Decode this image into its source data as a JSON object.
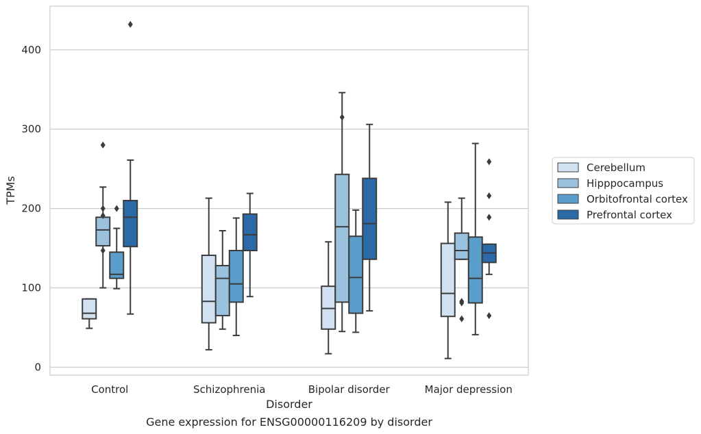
{
  "chart_data": {
    "type": "box",
    "title": "",
    "caption": "Gene expression for ENSG00000116209 by disorder",
    "xlabel": "Disorder",
    "ylabel": "TPMs",
    "ylim": [
      -10,
      455
    ],
    "yticks": [
      0,
      100,
      200,
      300,
      400
    ],
    "grid": "y",
    "legend_position": "right",
    "categories": [
      "Control",
      "Schizophrenia",
      "Bipolar disorder",
      "Major depression"
    ],
    "series": [
      {
        "name": "Cerebellum",
        "color": "#d1e1f1",
        "boxes": [
          {
            "whisker_low": 49,
            "q1": 61,
            "median": 68,
            "q3": 86,
            "whisker_high": 86,
            "outliers": []
          },
          {
            "whisker_low": 22,
            "q1": 56,
            "median": 83,
            "q3": 141,
            "whisker_high": 213,
            "outliers": []
          },
          {
            "whisker_low": 17,
            "q1": 48,
            "median": 74,
            "q3": 102,
            "whisker_high": 158,
            "outliers": []
          },
          {
            "whisker_low": 11,
            "q1": 64,
            "median": 93,
            "q3": 156,
            "whisker_high": 208,
            "outliers": []
          }
        ]
      },
      {
        "name": "Hipppocampus",
        "color": "#9ac2de",
        "boxes": [
          {
            "whisker_low": 100,
            "q1": 153,
            "median": 173,
            "q3": 189,
            "whisker_high": 227,
            "outliers": [
              147,
              191,
              200,
              280
            ]
          },
          {
            "whisker_low": 48,
            "q1": 65,
            "median": 112,
            "q3": 128,
            "whisker_high": 172,
            "outliers": []
          },
          {
            "whisker_low": 45,
            "q1": 82,
            "median": 177,
            "q3": 243,
            "whisker_high": 346,
            "outliers": [
              315
            ]
          },
          {
            "whisker_low": 136,
            "q1": 136,
            "median": 147,
            "q3": 169,
            "whisker_high": 213,
            "outliers": [
              61,
              81,
              83
            ]
          }
        ]
      },
      {
        "name": "Orbitofrontal cortex",
        "color": "#5b9dcb",
        "boxes": [
          {
            "whisker_low": 99,
            "q1": 112,
            "median": 117,
            "q3": 145,
            "whisker_high": 175,
            "outliers": [
              200
            ]
          },
          {
            "whisker_low": 40,
            "q1": 82,
            "median": 105,
            "q3": 147,
            "whisker_high": 188,
            "outliers": []
          },
          {
            "whisker_low": 44,
            "q1": 68,
            "median": 113,
            "q3": 165,
            "whisker_high": 198,
            "outliers": []
          },
          {
            "whisker_low": 41,
            "q1": 81,
            "median": 112,
            "q3": 164,
            "whisker_high": 282,
            "outliers": []
          }
        ]
      },
      {
        "name": "Prefrontal cortex",
        "color": "#2b6aa6",
        "boxes": [
          {
            "whisker_low": 67,
            "q1": 152,
            "median": 189,
            "q3": 210,
            "whisker_high": 261,
            "outliers": [
              432
            ]
          },
          {
            "whisker_low": 89,
            "q1": 147,
            "median": 167,
            "q3": 193,
            "whisker_high": 219,
            "outliers": []
          },
          {
            "whisker_low": 71,
            "q1": 136,
            "median": 181,
            "q3": 238,
            "whisker_high": 306,
            "outliers": []
          },
          {
            "whisker_low": 117,
            "q1": 132,
            "median": 144,
            "q3": 155,
            "whisker_high": 155,
            "outliers": [
              65,
              189,
              216,
              259
            ]
          }
        ]
      }
    ]
  }
}
